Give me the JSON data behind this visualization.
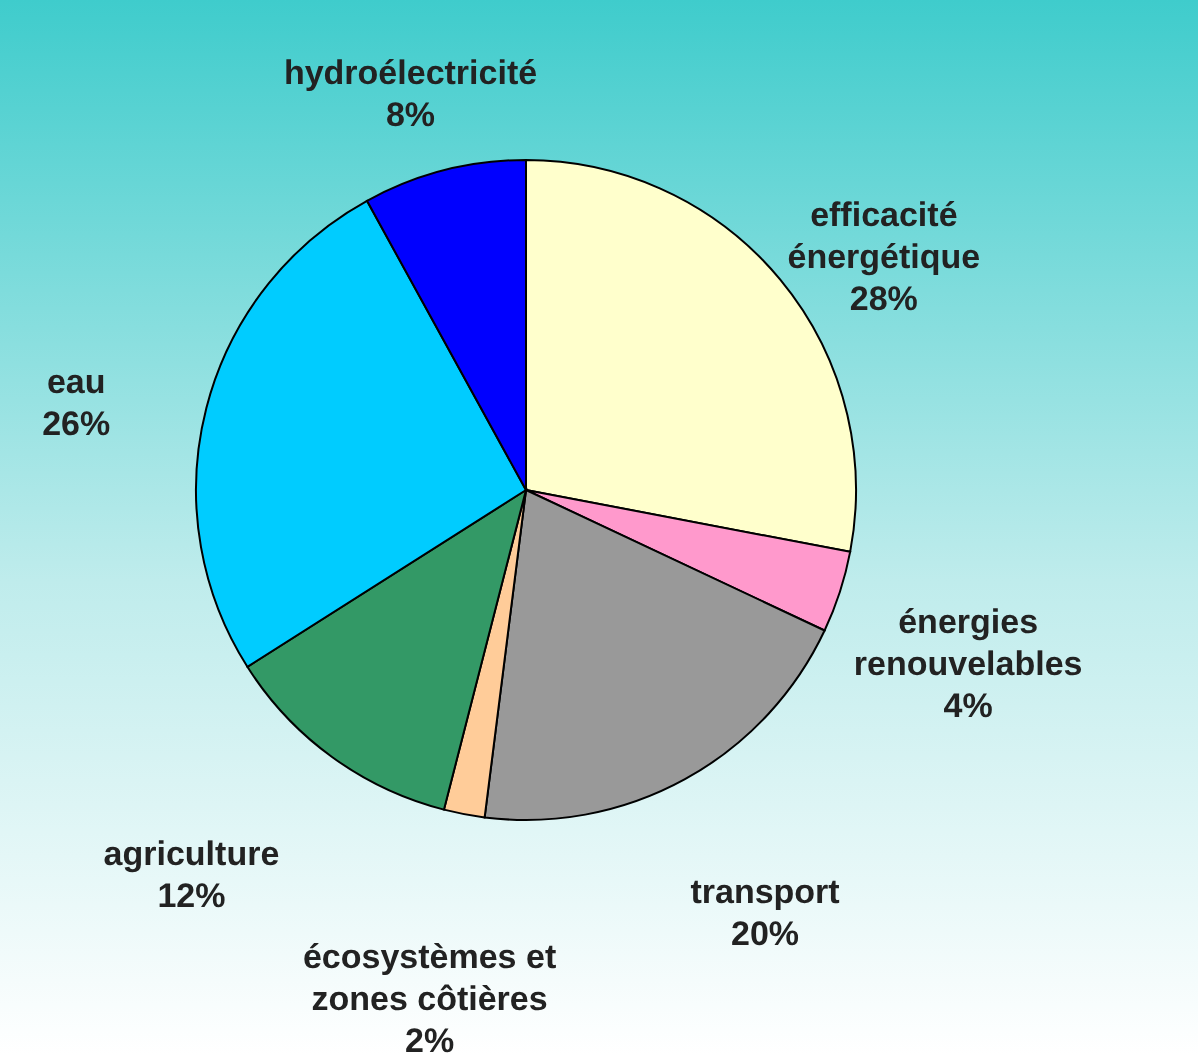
{
  "chart_data": {
    "type": "pie",
    "categories": [
      "efficacité énergétique",
      "énergies renouvelables",
      "transport",
      "écosystèmes et zones côtières",
      "agriculture",
      "eau",
      "hydroélectricité"
    ],
    "values": [
      28,
      4,
      20,
      2,
      12,
      26,
      8
    ],
    "value_labels": [
      "28%",
      "4%",
      "20%",
      "2%",
      "12%",
      "26%",
      "8%"
    ],
    "colors": [
      "#ffffcc",
      "#ff99cc",
      "#999999",
      "#ffcc99",
      "#339966",
      "#00ccff",
      "#0000ff"
    ]
  }
}
